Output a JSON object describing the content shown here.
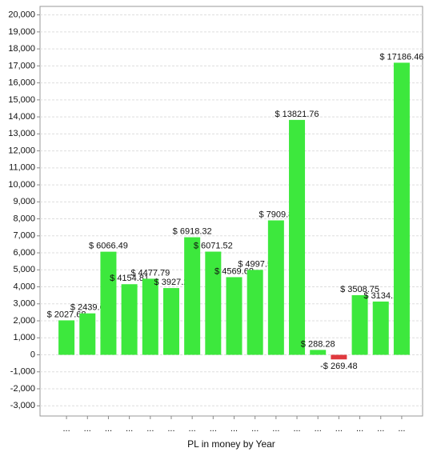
{
  "chart_data": {
    "type": "bar",
    "x_label": "PL in money by Year",
    "categories": [
      "...",
      "...",
      "...",
      "...",
      "...",
      "...",
      "...",
      "...",
      "...",
      "...",
      "...",
      "...",
      "...",
      "...",
      "...",
      "...",
      "..."
    ],
    "values": [
      2027.68,
      2439.6,
      6066.49,
      4154.81,
      4477.79,
      3927.2,
      6918.32,
      6071.52,
      4569.68,
      4997.5,
      7909.8,
      13821.76,
      288.28,
      -269.48,
      3508.75,
      3134.1,
      17186.46
    ],
    "value_labels": [
      "$ 2027.68",
      "$ 2439.6",
      "$ 6066.49",
      "$ 4154.81",
      "$ 4477.79",
      "$ 3927.2",
      "$ 6918.32",
      "$ 6071.52",
      "$ 4569.68",
      "$ 4997.5",
      "$ 7909.8",
      "$ 13821.76",
      "$ 288.28",
      "-$ 269.48",
      "$ 3508.75",
      "$ 3134.1",
      "$ 17186.46"
    ],
    "colors": [
      "#3de83d",
      "#3de83d",
      "#3de83d",
      "#3de83d",
      "#3de83d",
      "#3de83d",
      "#3de83d",
      "#3de83d",
      "#3de83d",
      "#3de83d",
      "#3de83d",
      "#3de83d",
      "#3de83d",
      "#e0393e",
      "#3de83d",
      "#3de83d",
      "#3de83d"
    ],
    "ylim": [
      -3600,
      20500
    ],
    "yticks": [
      {
        "value": -3000,
        "label": "-3,000"
      },
      {
        "value": -2000,
        "label": "-2,000"
      },
      {
        "value": -1000,
        "label": "-1,000"
      },
      0,
      {
        "value": 1000,
        "label": "1,000"
      },
      {
        "value": 2000,
        "label": "2,000"
      },
      {
        "value": 3000,
        "label": "3,000"
      },
      {
        "value": 4000,
        "label": "4,000"
      },
      {
        "value": 5000,
        "label": "5,000"
      },
      {
        "value": 6000,
        "label": "6,000"
      },
      {
        "value": 7000,
        "label": "7,000"
      },
      {
        "value": 8000,
        "label": "8,000"
      },
      {
        "value": 9000,
        "label": "9,000"
      },
      {
        "value": 10000,
        "label": "10,000"
      },
      {
        "value": 11000,
        "label": "11,000"
      },
      {
        "value": 12000,
        "label": "12,000"
      },
      {
        "value": 13000,
        "label": "13,000"
      },
      {
        "value": 14000,
        "label": "14,000"
      },
      {
        "value": 15000,
        "label": "15,000"
      },
      {
        "value": 16000,
        "label": "16,000"
      },
      {
        "value": 17000,
        "label": "17,000"
      },
      {
        "value": 18000,
        "label": "18,000"
      },
      {
        "value": 19000,
        "label": "19,000"
      },
      {
        "value": 20000,
        "label": "20,000"
      }
    ],
    "grid": true
  }
}
